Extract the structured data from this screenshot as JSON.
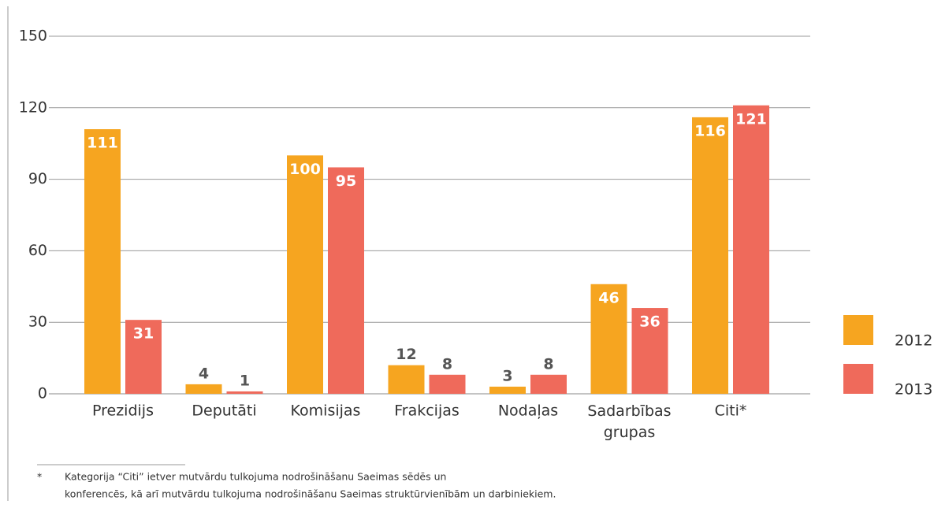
{
  "chart_data": {
    "type": "bar",
    "categories": [
      "Prezidijs",
      "Deputāti",
      "Komisijas",
      "Frakcijas",
      "Nodaļas",
      "Sadarbības grupas",
      "Citi*"
    ],
    "series": [
      {
        "name": "2012",
        "color": "#f6a520",
        "values": [
          111,
          4,
          100,
          12,
          3,
          46,
          116
        ]
      },
      {
        "name": "2013",
        "color": "#ef6a5b",
        "values": [
          31,
          1,
          95,
          8,
          8,
          36,
          121
        ]
      }
    ],
    "ylim": [
      0,
      150
    ],
    "yticks": [
      0,
      30,
      60,
      90,
      120,
      150
    ],
    "grid": true,
    "legend": "right",
    "footnote": {
      "marker": "*",
      "lines": [
        "Kategorija “Citi” ietver mutvārdu tulkojuma nodrošināšanu Saeimas sēdēs un",
        "konferencēs, kā arī mutvārdu tulkojuma nodrošināšanu Saeimas struktūrvienībām un darbiniekiem."
      ]
    }
  }
}
